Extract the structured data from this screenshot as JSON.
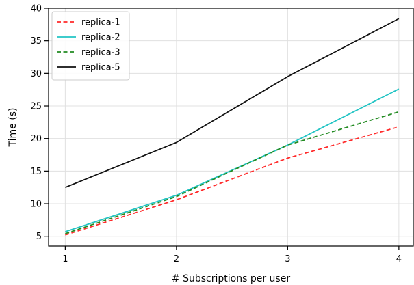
{
  "chart_data": {
    "type": "line",
    "title": "",
    "xlabel": "# Subscriptions per user",
    "ylabel": "Time (s)",
    "x": [
      1,
      2,
      3,
      4
    ],
    "xlim": [
      0.85,
      4.13
    ],
    "ylim": [
      3.5,
      40
    ],
    "xticks": [
      1,
      2,
      3,
      4
    ],
    "yticks": [
      5,
      10,
      15,
      20,
      25,
      30,
      35,
      40
    ],
    "grid": true,
    "legend_position": "top-left",
    "series": [
      {
        "name": "replica-1",
        "values": [
          5.2,
          10.6,
          17.0,
          21.8
        ],
        "color": "#ff2a2a",
        "dash": "dashed"
      },
      {
        "name": "replica-2",
        "values": [
          5.7,
          11.3,
          19.0,
          27.6
        ],
        "color": "#22c4c4",
        "dash": "solid"
      },
      {
        "name": "replica-3",
        "values": [
          5.4,
          11.1,
          19.0,
          24.1
        ],
        "color": "#228b22",
        "dash": "dashed"
      },
      {
        "name": "replica-5",
        "values": [
          12.5,
          19.4,
          29.5,
          38.4
        ],
        "color": "#111111",
        "dash": "solid"
      }
    ]
  }
}
